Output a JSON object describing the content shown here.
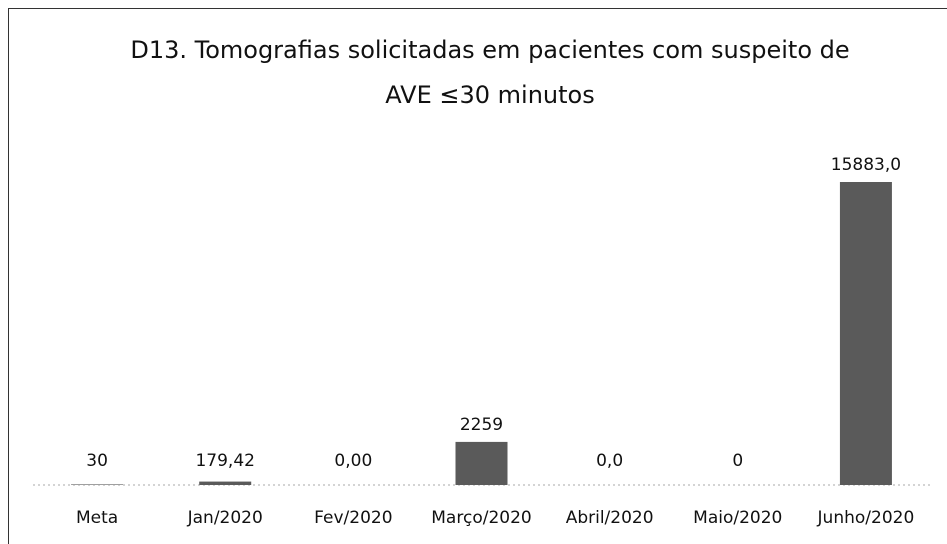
{
  "chart_data": {
    "type": "bar",
    "title": "D13. Tomografias solicitadas em pacientes com suspeito de AVE ≤30 minutos",
    "categories": [
      "Meta",
      "Jan/2020",
      "Fev/2020",
      "Março/2020",
      "Abril/2020",
      "Maio/2020",
      "Junho/2020"
    ],
    "values": [
      30,
      179.42,
      0,
      2259,
      0,
      0,
      15883
    ],
    "value_labels": [
      "30",
      "179,42",
      "0,00",
      "2259",
      "0,0",
      "0",
      "15883,0"
    ],
    "color": "#5a5a5a"
  }
}
